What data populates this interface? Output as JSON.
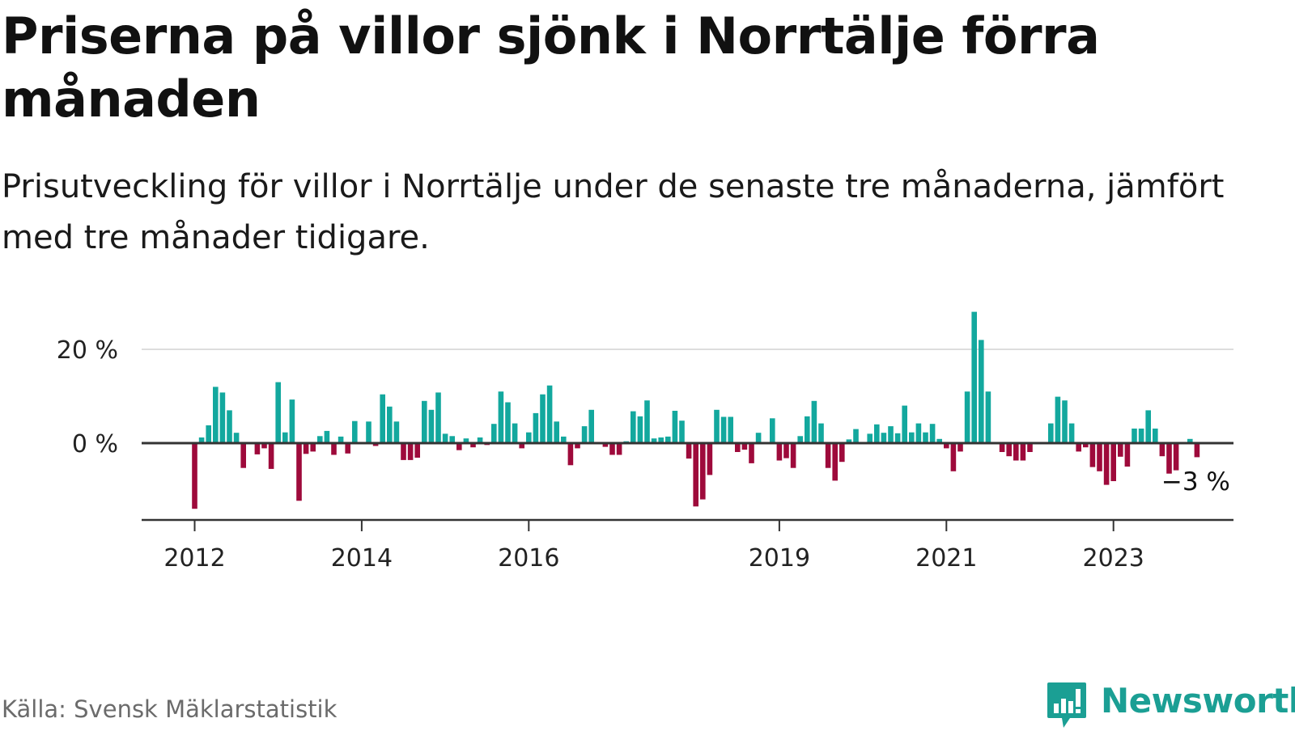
{
  "title": "Priserna på villor sjönk i Norrtälje förra månaden",
  "subtitle": "Prisutveckling för villor i Norrtälje under de senaste tre månaderna, jämfört med tre månader tidigare.",
  "source": "Källa: Svensk Mäklarstatistik",
  "brand": {
    "name": "Newsworthy",
    "icon": "newsworthy-logo-icon"
  },
  "colors": {
    "positive": "#13a89e",
    "negative": "#9e0a3b",
    "grid": "#dddddd",
    "axis": "#333333",
    "logo": "#1b9f94"
  },
  "chart_data": {
    "type": "bar",
    "title": "Priserna på villor sjönk i Norrtälje förra månaden",
    "xlabel": "",
    "ylabel": "",
    "ylim": [
      -16,
      28
    ],
    "grid": true,
    "y_ticks": [
      {
        "value": 0,
        "label": "0 %"
      },
      {
        "value": 20,
        "label": "20 %"
      }
    ],
    "x_ticks": [
      {
        "index": 0,
        "label": "2012"
      },
      {
        "index": 24,
        "label": "2014"
      },
      {
        "index": 48,
        "label": "2016"
      },
      {
        "index": 84,
        "label": "2019"
      },
      {
        "index": 108,
        "label": "2021"
      },
      {
        "index": 132,
        "label": "2023"
      }
    ],
    "last_value_label": "−3 %",
    "period": "2012-01 to 2024-03, monthly",
    "values": [
      -14,
      1.2,
      3.8,
      12,
      10.8,
      7,
      2.2,
      -5.3,
      0,
      -2.4,
      -1.1,
      -5.5,
      13,
      2.3,
      9.3,
      -12.3,
      -2.3,
      -1.8,
      1.5,
      2.6,
      -2.5,
      1.4,
      -2.2,
      4.7,
      0,
      4.6,
      -0.6,
      10.4,
      7.8,
      4.6,
      -3.6,
      -3.6,
      -3.1,
      9,
      7.1,
      10.8,
      2,
      1.5,
      -1.5,
      1,
      -0.9,
      1.2,
      -0.4,
      4.1,
      11,
      8.7,
      4.2,
      -1.1,
      2.3,
      6.4,
      10.4,
      12.3,
      4.6,
      1.4,
      -4.7,
      -1.1,
      3.6,
      7.1,
      0,
      -0.8,
      -2.5,
      -2.5,
      0.4,
      6.8,
      5.7,
      9.1,
      1,
      1.2,
      1.4,
      6.9,
      4.8,
      -3.3,
      -13.5,
      -12,
      -6.8,
      7.1,
      5.6,
      5.6,
      -1.9,
      -1.4,
      -4.3,
      2.2,
      0,
      5.3,
      -3.7,
      -3.2,
      -5.3,
      1.5,
      5.7,
      9,
      4.2,
      -5.3,
      -8,
      -4,
      0.8,
      3,
      0,
      2,
      4,
      2.2,
      3.6,
      2.1,
      8,
      2.3,
      4.2,
      2.3,
      4.1,
      0.9,
      -1.1,
      -6,
      -1.8,
      11,
      28,
      22,
      11,
      0,
      -1.9,
      -2.8,
      -3.7,
      -3.7,
      -1.9,
      0,
      0,
      4.2,
      9.9,
      9.1,
      4.2,
      -1.8,
      -0.9,
      -5.1,
      -6,
      -8.9,
      -8.1,
      -2.9,
      -5,
      3.1,
      3.1,
      7,
      3.1,
      -2.8,
      -6.5,
      -5.8,
      0,
      0.9,
      -3
    ]
  }
}
